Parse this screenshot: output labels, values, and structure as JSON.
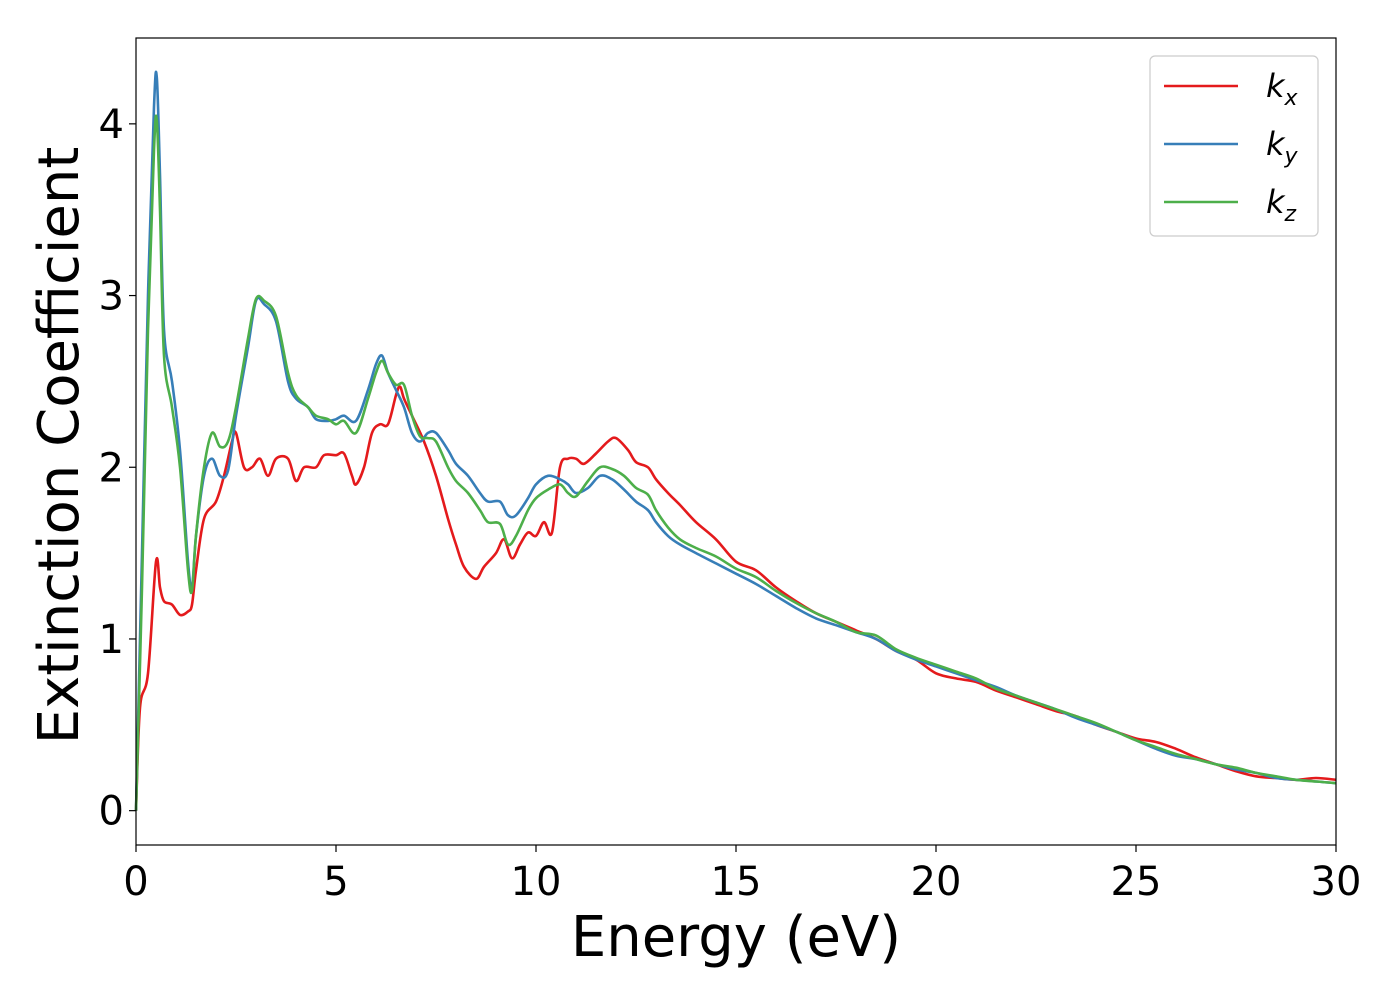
{
  "chart_data": {
    "type": "line",
    "title": "",
    "xlabel": "Energy (eV)",
    "ylabel": "Extinction Coefficient",
    "xlim": [
      0,
      30
    ],
    "ylim": [
      -0.2,
      4.5
    ],
    "xticks": [
      0,
      5,
      10,
      15,
      20,
      25,
      30
    ],
    "yticks": [
      0,
      1,
      2,
      3,
      4
    ],
    "grid": false,
    "legend_position": "top-right",
    "series": [
      {
        "name": "k_x",
        "legend_base": "k",
        "legend_sub": "x",
        "color": "#e41a1c",
        "points": [
          [
            0,
            0
          ],
          [
            0.1,
            0.6
          ],
          [
            0.3,
            0.8
          ],
          [
            0.5,
            1.45
          ],
          [
            0.6,
            1.3
          ],
          [
            0.7,
            1.22
          ],
          [
            0.9,
            1.2
          ],
          [
            1.1,
            1.14
          ],
          [
            1.3,
            1.16
          ],
          [
            1.4,
            1.2
          ],
          [
            1.5,
            1.4
          ],
          [
            1.7,
            1.7
          ],
          [
            2,
            1.8
          ],
          [
            2.2,
            1.95
          ],
          [
            2.4,
            2.15
          ],
          [
            2.5,
            2.2
          ],
          [
            2.7,
            2.0
          ],
          [
            2.9,
            2.0
          ],
          [
            3.1,
            2.05
          ],
          [
            3.3,
            1.95
          ],
          [
            3.5,
            2.05
          ],
          [
            3.8,
            2.05
          ],
          [
            4.0,
            1.92
          ],
          [
            4.2,
            2.0
          ],
          [
            4.5,
            2.0
          ],
          [
            4.7,
            2.07
          ],
          [
            5.0,
            2.07
          ],
          [
            5.2,
            2.08
          ],
          [
            5.4,
            1.95
          ],
          [
            5.5,
            1.9
          ],
          [
            5.7,
            2.0
          ],
          [
            5.9,
            2.2
          ],
          [
            6.1,
            2.25
          ],
          [
            6.3,
            2.25
          ],
          [
            6.5,
            2.42
          ],
          [
            6.6,
            2.47
          ],
          [
            6.7,
            2.4
          ],
          [
            6.9,
            2.3
          ],
          [
            7.2,
            2.15
          ],
          [
            7.5,
            1.95
          ],
          [
            7.8,
            1.7
          ],
          [
            8.0,
            1.55
          ],
          [
            8.2,
            1.42
          ],
          [
            8.5,
            1.35
          ],
          [
            8.7,
            1.42
          ],
          [
            9.0,
            1.5
          ],
          [
            9.2,
            1.58
          ],
          [
            9.4,
            1.47
          ],
          [
            9.6,
            1.55
          ],
          [
            9.8,
            1.62
          ],
          [
            10.0,
            1.6
          ],
          [
            10.2,
            1.68
          ],
          [
            10.4,
            1.62
          ],
          [
            10.6,
            2.0
          ],
          [
            10.8,
            2.05
          ],
          [
            11.0,
            2.05
          ],
          [
            11.2,
            2.02
          ],
          [
            11.5,
            2.08
          ],
          [
            11.8,
            2.15
          ],
          [
            12.0,
            2.17
          ],
          [
            12.3,
            2.1
          ],
          [
            12.5,
            2.03
          ],
          [
            12.8,
            2.0
          ],
          [
            13.0,
            1.93
          ],
          [
            13.3,
            1.85
          ],
          [
            13.6,
            1.78
          ],
          [
            14.0,
            1.68
          ],
          [
            14.5,
            1.58
          ],
          [
            15.0,
            1.45
          ],
          [
            15.5,
            1.4
          ],
          [
            16.0,
            1.3
          ],
          [
            16.5,
            1.22
          ],
          [
            17.0,
            1.15
          ],
          [
            17.5,
            1.1
          ],
          [
            18.0,
            1.05
          ],
          [
            18.5,
            1.0
          ],
          [
            19.0,
            0.93
          ],
          [
            19.5,
            0.88
          ],
          [
            20.0,
            0.8
          ],
          [
            20.5,
            0.77
          ],
          [
            21.0,
            0.75
          ],
          [
            21.5,
            0.7
          ],
          [
            22.0,
            0.66
          ],
          [
            22.5,
            0.62
          ],
          [
            23.0,
            0.58
          ],
          [
            23.5,
            0.55
          ],
          [
            24.0,
            0.5
          ],
          [
            24.5,
            0.46
          ],
          [
            25.0,
            0.42
          ],
          [
            25.5,
            0.4
          ],
          [
            26.0,
            0.36
          ],
          [
            26.5,
            0.31
          ],
          [
            27.0,
            0.27
          ],
          [
            27.5,
            0.23
          ],
          [
            28.0,
            0.2
          ],
          [
            28.5,
            0.19
          ],
          [
            29.0,
            0.18
          ],
          [
            29.5,
            0.19
          ],
          [
            30.0,
            0.18
          ]
        ]
      },
      {
        "name": "k_y",
        "legend_base": "k",
        "legend_sub": "y",
        "color": "#377eb8",
        "points": [
          [
            0,
            0
          ],
          [
            0.15,
            1.5
          ],
          [
            0.3,
            3.0
          ],
          [
            0.45,
            4.1
          ],
          [
            0.52,
            4.27
          ],
          [
            0.6,
            3.7
          ],
          [
            0.7,
            2.8
          ],
          [
            0.9,
            2.5
          ],
          [
            1.1,
            2.1
          ],
          [
            1.3,
            1.45
          ],
          [
            1.4,
            1.3
          ],
          [
            1.5,
            1.6
          ],
          [
            1.7,
            1.95
          ],
          [
            1.9,
            2.05
          ],
          [
            2.1,
            1.95
          ],
          [
            2.3,
            1.98
          ],
          [
            2.5,
            2.3
          ],
          [
            2.8,
            2.7
          ],
          [
            3.0,
            2.97
          ],
          [
            3.2,
            2.95
          ],
          [
            3.5,
            2.85
          ],
          [
            3.8,
            2.5
          ],
          [
            4.0,
            2.4
          ],
          [
            4.3,
            2.35
          ],
          [
            4.5,
            2.28
          ],
          [
            4.8,
            2.27
          ],
          [
            5.0,
            2.28
          ],
          [
            5.2,
            2.3
          ],
          [
            5.5,
            2.27
          ],
          [
            5.8,
            2.45
          ],
          [
            6.0,
            2.6
          ],
          [
            6.15,
            2.65
          ],
          [
            6.3,
            2.55
          ],
          [
            6.5,
            2.45
          ],
          [
            6.7,
            2.35
          ],
          [
            6.9,
            2.2
          ],
          [
            7.1,
            2.15
          ],
          [
            7.3,
            2.2
          ],
          [
            7.5,
            2.2
          ],
          [
            7.8,
            2.1
          ],
          [
            8.0,
            2.02
          ],
          [
            8.3,
            1.95
          ],
          [
            8.6,
            1.85
          ],
          [
            8.8,
            1.8
          ],
          [
            9.1,
            1.8
          ],
          [
            9.3,
            1.72
          ],
          [
            9.5,
            1.72
          ],
          [
            9.8,
            1.82
          ],
          [
            10.0,
            1.9
          ],
          [
            10.3,
            1.95
          ],
          [
            10.6,
            1.93
          ],
          [
            10.8,
            1.9
          ],
          [
            11.0,
            1.85
          ],
          [
            11.3,
            1.88
          ],
          [
            11.6,
            1.95
          ],
          [
            11.9,
            1.93
          ],
          [
            12.2,
            1.87
          ],
          [
            12.5,
            1.8
          ],
          [
            12.8,
            1.75
          ],
          [
            13.0,
            1.68
          ],
          [
            13.3,
            1.6
          ],
          [
            13.6,
            1.55
          ],
          [
            14.0,
            1.5
          ],
          [
            14.5,
            1.44
          ],
          [
            15.0,
            1.38
          ],
          [
            15.5,
            1.32
          ],
          [
            16.0,
            1.25
          ],
          [
            16.5,
            1.18
          ],
          [
            17.0,
            1.12
          ],
          [
            17.5,
            1.08
          ],
          [
            18.0,
            1.04
          ],
          [
            18.5,
            1.0
          ],
          [
            19.0,
            0.93
          ],
          [
            19.5,
            0.88
          ],
          [
            20.0,
            0.84
          ],
          [
            20.5,
            0.8
          ],
          [
            21.0,
            0.76
          ],
          [
            21.5,
            0.72
          ],
          [
            22.0,
            0.67
          ],
          [
            22.5,
            0.63
          ],
          [
            23.0,
            0.59
          ],
          [
            23.5,
            0.54
          ],
          [
            24.0,
            0.5
          ],
          [
            24.5,
            0.46
          ],
          [
            25.0,
            0.41
          ],
          [
            25.5,
            0.36
          ],
          [
            26.0,
            0.32
          ],
          [
            26.5,
            0.3
          ],
          [
            27.0,
            0.27
          ],
          [
            27.5,
            0.24
          ],
          [
            28.0,
            0.22
          ],
          [
            28.5,
            0.19
          ],
          [
            29.0,
            0.18
          ],
          [
            29.5,
            0.17
          ],
          [
            30.0,
            0.16
          ]
        ]
      },
      {
        "name": "k_z",
        "legend_base": "k",
        "legend_sub": "z",
        "color": "#4daf4a",
        "points": [
          [
            0,
            0
          ],
          [
            0.15,
            1.3
          ],
          [
            0.3,
            2.8
          ],
          [
            0.45,
            3.85
          ],
          [
            0.52,
            4.02
          ],
          [
            0.6,
            3.5
          ],
          [
            0.7,
            2.65
          ],
          [
            0.9,
            2.35
          ],
          [
            1.1,
            2.0
          ],
          [
            1.3,
            1.4
          ],
          [
            1.4,
            1.28
          ],
          [
            1.5,
            1.6
          ],
          [
            1.7,
            2.0
          ],
          [
            1.9,
            2.2
          ],
          [
            2.1,
            2.12
          ],
          [
            2.3,
            2.15
          ],
          [
            2.5,
            2.35
          ],
          [
            2.8,
            2.75
          ],
          [
            3.0,
            2.98
          ],
          [
            3.2,
            2.97
          ],
          [
            3.5,
            2.88
          ],
          [
            3.8,
            2.55
          ],
          [
            4.0,
            2.42
          ],
          [
            4.3,
            2.35
          ],
          [
            4.5,
            2.3
          ],
          [
            4.8,
            2.28
          ],
          [
            5.0,
            2.25
          ],
          [
            5.2,
            2.27
          ],
          [
            5.5,
            2.2
          ],
          [
            5.8,
            2.4
          ],
          [
            6.0,
            2.55
          ],
          [
            6.15,
            2.62
          ],
          [
            6.3,
            2.55
          ],
          [
            6.5,
            2.48
          ],
          [
            6.7,
            2.48
          ],
          [
            6.9,
            2.3
          ],
          [
            7.1,
            2.18
          ],
          [
            7.3,
            2.17
          ],
          [
            7.5,
            2.15
          ],
          [
            7.8,
            2.0
          ],
          [
            8.0,
            1.92
          ],
          [
            8.3,
            1.85
          ],
          [
            8.6,
            1.75
          ],
          [
            8.8,
            1.68
          ],
          [
            9.1,
            1.67
          ],
          [
            9.3,
            1.55
          ],
          [
            9.5,
            1.6
          ],
          [
            9.8,
            1.75
          ],
          [
            10.0,
            1.82
          ],
          [
            10.3,
            1.87
          ],
          [
            10.6,
            1.9
          ],
          [
            10.8,
            1.85
          ],
          [
            11.0,
            1.83
          ],
          [
            11.3,
            1.92
          ],
          [
            11.6,
            2.0
          ],
          [
            11.9,
            1.99
          ],
          [
            12.2,
            1.95
          ],
          [
            12.5,
            1.88
          ],
          [
            12.8,
            1.84
          ],
          [
            13.0,
            1.75
          ],
          [
            13.3,
            1.65
          ],
          [
            13.6,
            1.58
          ],
          [
            14.0,
            1.53
          ],
          [
            14.5,
            1.48
          ],
          [
            15.0,
            1.41
          ],
          [
            15.5,
            1.36
          ],
          [
            16.0,
            1.28
          ],
          [
            16.5,
            1.21
          ],
          [
            17.0,
            1.15
          ],
          [
            17.5,
            1.1
          ],
          [
            18.0,
            1.04
          ],
          [
            18.5,
            1.02
          ],
          [
            19.0,
            0.94
          ],
          [
            19.5,
            0.89
          ],
          [
            20.0,
            0.85
          ],
          [
            20.5,
            0.81
          ],
          [
            21.0,
            0.77
          ],
          [
            21.5,
            0.71
          ],
          [
            22.0,
            0.67
          ],
          [
            22.5,
            0.63
          ],
          [
            23.0,
            0.59
          ],
          [
            23.5,
            0.55
          ],
          [
            24.0,
            0.51
          ],
          [
            24.5,
            0.46
          ],
          [
            25.0,
            0.41
          ],
          [
            25.5,
            0.37
          ],
          [
            26.0,
            0.33
          ],
          [
            26.5,
            0.3
          ],
          [
            27.0,
            0.27
          ],
          [
            27.5,
            0.25
          ],
          [
            28.0,
            0.22
          ],
          [
            28.5,
            0.2
          ],
          [
            29.0,
            0.18
          ],
          [
            29.5,
            0.17
          ],
          [
            30.0,
            0.16
          ]
        ]
      }
    ]
  }
}
